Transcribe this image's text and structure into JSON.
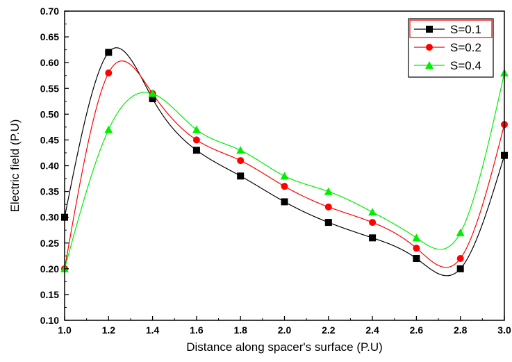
{
  "chart_data": {
    "type": "line",
    "title": "",
    "xlabel": "Distance along spacer's surface (P.U)",
    "ylabel": "Electric field (P.U)",
    "xlim": [
      1.0,
      3.0
    ],
    "ylim": [
      0.1,
      0.7
    ],
    "xticks": [
      "1.0",
      "1.2",
      "1.4",
      "1.6",
      "1.8",
      "2.0",
      "2.2",
      "2.4",
      "2.6",
      "2.8",
      "3.0"
    ],
    "yticks": [
      "0.10",
      "0.15",
      "0.20",
      "0.25",
      "0.30",
      "0.35",
      "0.40",
      "0.45",
      "0.50",
      "0.55",
      "0.60",
      "0.65",
      "0.70"
    ],
    "x": [
      1.0,
      1.2,
      1.4,
      1.6,
      1.8,
      2.0,
      2.2,
      2.4,
      2.6,
      2.8,
      3.0
    ],
    "series": [
      {
        "name": "S=0.1",
        "color": "#000000",
        "marker": "square",
        "values": [
          0.3,
          0.62,
          0.53,
          0.43,
          0.38,
          0.33,
          0.29,
          0.26,
          0.22,
          0.2,
          0.42
        ]
      },
      {
        "name": "S=0.2",
        "color": "#ff0000",
        "marker": "circle",
        "values": [
          0.2,
          0.58,
          0.54,
          0.45,
          0.41,
          0.36,
          0.32,
          0.29,
          0.24,
          0.22,
          0.48
        ]
      },
      {
        "name": "S=0.4",
        "color": "#00ee00",
        "marker": "triangle",
        "values": [
          0.2,
          0.47,
          0.54,
          0.47,
          0.43,
          0.38,
          0.35,
          0.31,
          0.26,
          0.27,
          0.58
        ]
      }
    ],
    "grid": false,
    "legend": "top-right"
  }
}
